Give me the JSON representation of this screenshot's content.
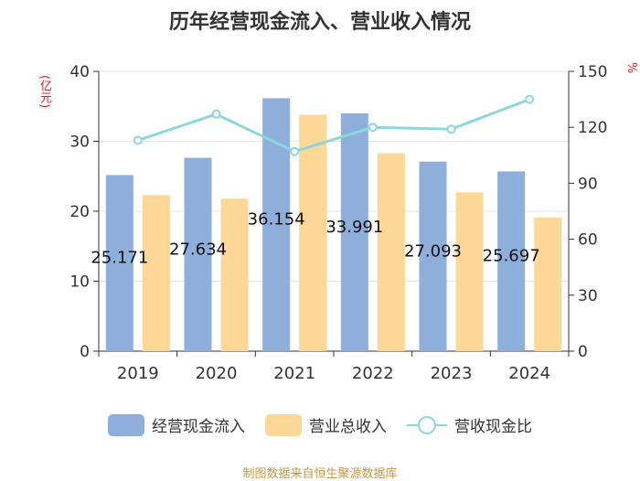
{
  "title": "历年经营现金流入、营业收入情况",
  "source": "制图数据来自恒生聚源数据库",
  "colors": {
    "cash_inflow": "#8eaedb",
    "revenue": "#fdd796",
    "ratio_line": "#8fd6dc",
    "axis_label": "#e02020",
    "axis_text": "#333333"
  },
  "chart_data": {
    "type": "bar",
    "categories": [
      "2019",
      "2020",
      "2021",
      "2022",
      "2023",
      "2024"
    ],
    "series": [
      {
        "name": "经营现金流入",
        "axis": "left",
        "kind": "bar",
        "values": [
          25.171,
          27.634,
          36.154,
          33.991,
          27.093,
          25.697
        ],
        "labels": [
          "25.171",
          "27.634",
          "36.154",
          "33.991",
          "27.093",
          "25.697"
        ]
      },
      {
        "name": "营业总收入",
        "axis": "left",
        "kind": "bar",
        "values": [
          22.3,
          21.8,
          33.8,
          28.3,
          22.7,
          19.1
        ]
      },
      {
        "name": "营收现金比",
        "axis": "right",
        "kind": "line",
        "values": [
          113,
          127,
          107,
          120,
          119,
          135
        ]
      }
    ],
    "left_axis": {
      "label": "亿元",
      "range": [
        0,
        40
      ],
      "ticks": [
        0,
        10,
        20,
        30,
        40
      ]
    },
    "right_axis": {
      "label": "%",
      "range": [
        0,
        150
      ],
      "ticks": [
        0,
        30,
        60,
        90,
        120,
        150
      ]
    },
    "legend": [
      "经营现金流入",
      "营业总收入",
      "营收现金比"
    ],
    "legend_position": "bottom",
    "grid": true
  }
}
